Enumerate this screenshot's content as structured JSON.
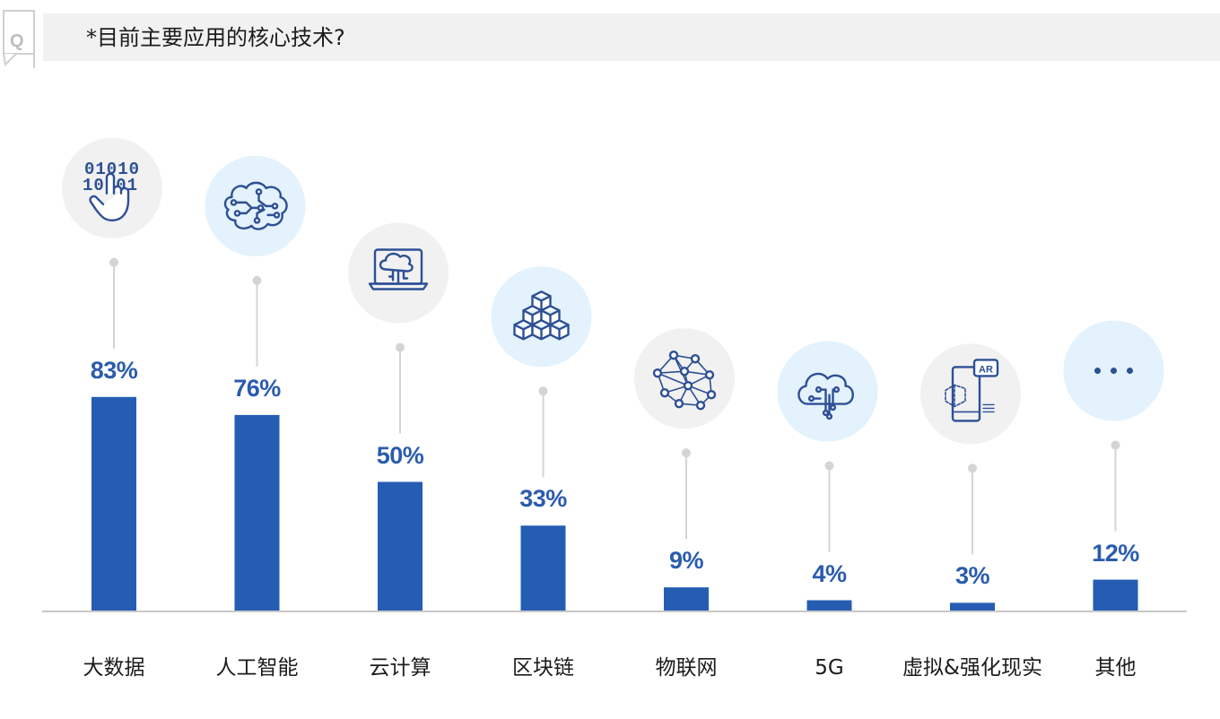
{
  "header": {
    "badge_letter": "Q",
    "question": "*目前主要应用的核心技术?"
  },
  "colors": {
    "bar": "#255db3",
    "value_text": "#2a5cad",
    "icon_stroke": "#2d4f96",
    "icon_bg_gray": "#f1f1f1",
    "icon_bg_blue": "#e3f2fc",
    "leader_line": "#d4d4d4",
    "axis": "#c8c8c8"
  },
  "chart_data": {
    "type": "bar",
    "title": "",
    "xlabel": "",
    "ylabel": "",
    "ylim": [
      0,
      100
    ],
    "unit": "%",
    "categories": [
      "大数据",
      "人工智能",
      "云计算",
      "区块链",
      "物联网",
      "5G",
      "虚拟&强化现实",
      "其他"
    ],
    "values": [
      83,
      76,
      50,
      33,
      9,
      4,
      3,
      12
    ],
    "value_labels": [
      "83%",
      "76%",
      "50%",
      "33%",
      "9%",
      "4%",
      "3%",
      "12%"
    ],
    "icons": [
      {
        "name": "binary-touch-icon",
        "bg": "gray"
      },
      {
        "name": "ai-brain-icon",
        "bg": "blue"
      },
      {
        "name": "cloud-laptop-icon",
        "bg": "gray"
      },
      {
        "name": "blockchain-cubes-icon",
        "bg": "blue"
      },
      {
        "name": "iot-network-icon",
        "bg": "gray"
      },
      {
        "name": "cloud-circuit-icon",
        "bg": "blue"
      },
      {
        "name": "ar-phone-icon",
        "bg": "gray"
      },
      {
        "name": "more-dots-icon",
        "bg": "blue"
      }
    ],
    "ar_badge": "AR",
    "binary_rows": [
      "01010",
      "10101"
    ]
  }
}
